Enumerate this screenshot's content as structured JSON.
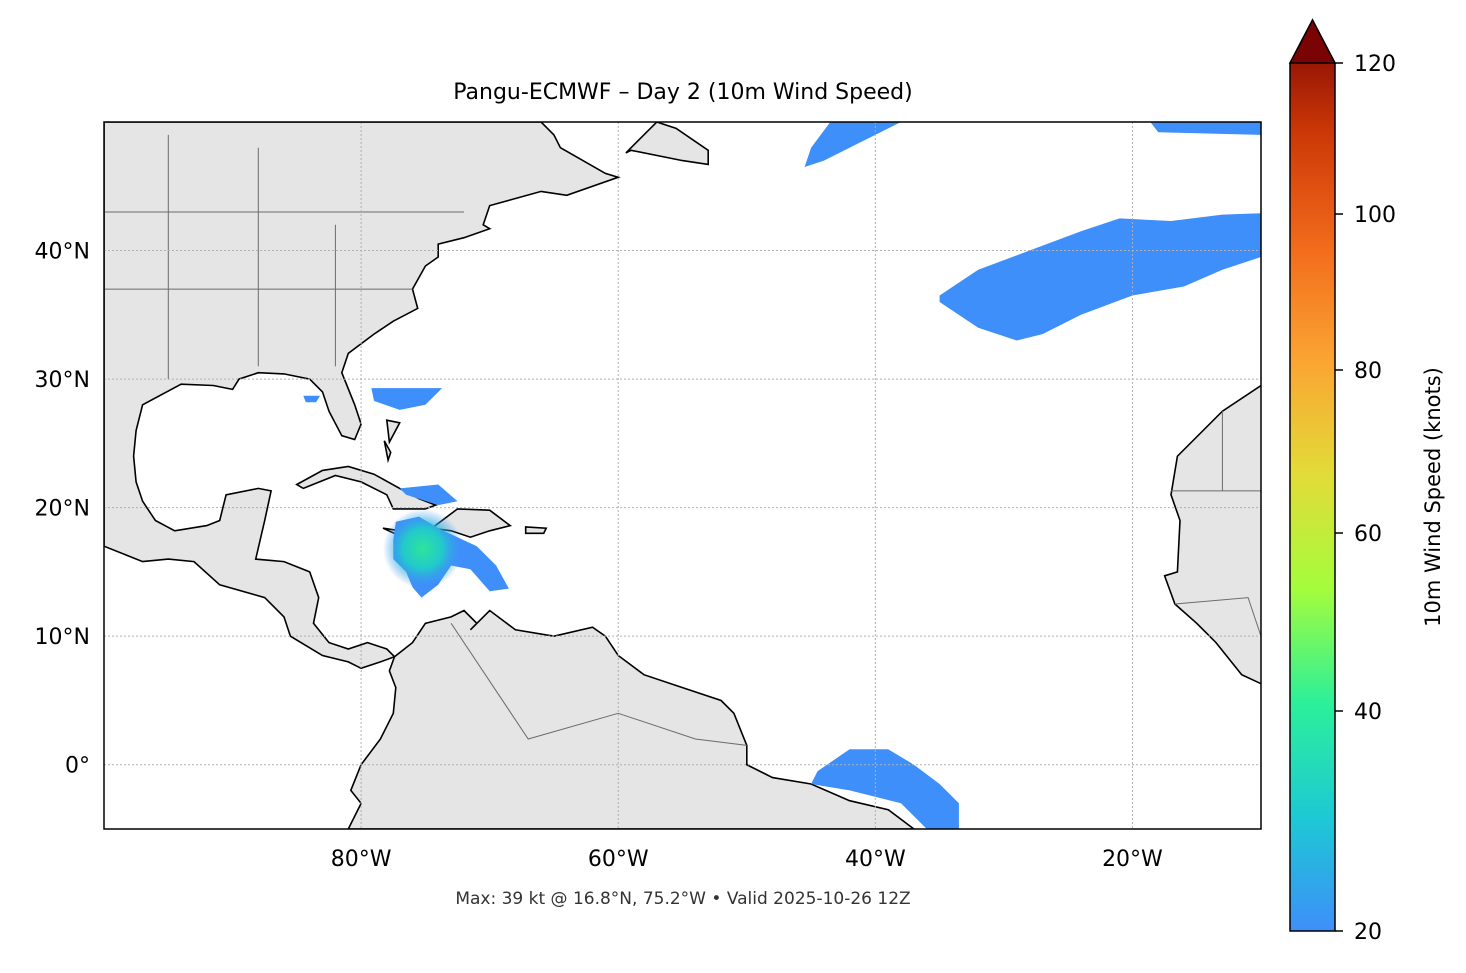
{
  "chart_data": {
    "type": "heatmap",
    "title": "Pangu-ECMWF – Day 2 (10m Wind Speed)",
    "caption": "Max: 39 kt @ 16.8°N, 75.2°W • Valid 2025-10-26 12Z",
    "lon_range": [
      -100,
      -10
    ],
    "lat_range": [
      -5,
      50
    ],
    "lon_ticks": [
      {
        "value": -80,
        "label": "80°W"
      },
      {
        "value": -60,
        "label": "60°W"
      },
      {
        "value": -40,
        "label": "40°W"
      },
      {
        "value": -20,
        "label": "20°W"
      }
    ],
    "lat_ticks": [
      {
        "value": 40,
        "label": "40°N"
      },
      {
        "value": 30,
        "label": "30°N"
      },
      {
        "value": 20,
        "label": "20°N"
      },
      {
        "value": 10,
        "label": "10°N"
      },
      {
        "value": 0,
        "label": "0°"
      }
    ],
    "grid": true,
    "colorbar": {
      "label": "10m Wind Speed (knots)",
      "range": [
        20,
        120
      ],
      "extend": "max",
      "ticks": [
        "20",
        "40",
        "60",
        "80",
        "100",
        "120"
      ],
      "colormap": "turbo",
      "colors": [
        "#3e8ff9",
        "#1dc9d4",
        "#2cf09a",
        "#a4fc3c",
        "#e2dc38",
        "#fba532",
        "#f26b1c",
        "#cd3807",
        "#7a0403"
      ]
    },
    "max_point": {
      "value_kt": 39,
      "lat": 16.8,
      "lon": -75.2
    },
    "colors": {
      "land": "#e5e5e5",
      "ocean": "#ffffff",
      "coast": "#000000",
      "borders": "#6b6b6b",
      "grid": "#b0b0b0"
    }
  }
}
